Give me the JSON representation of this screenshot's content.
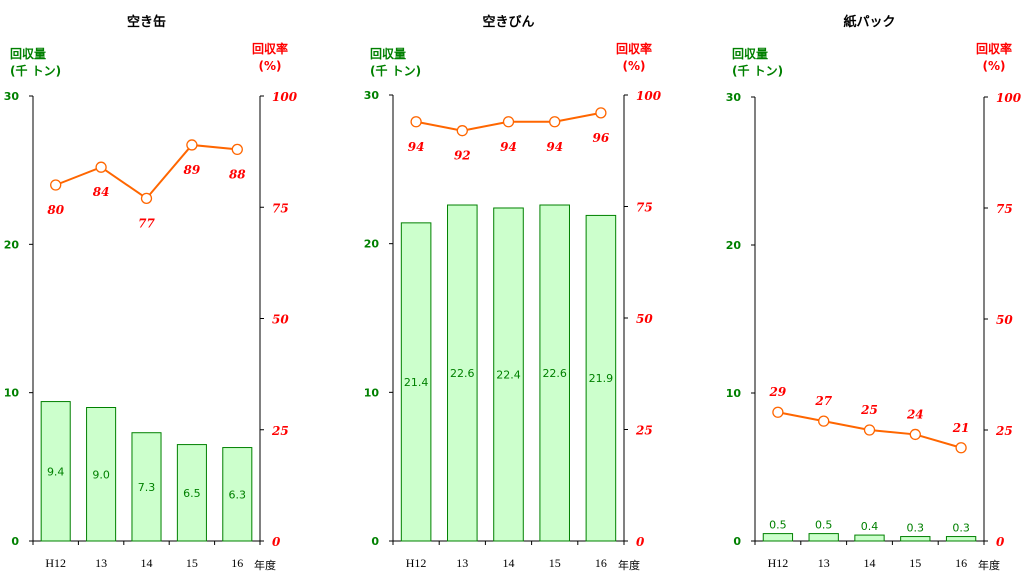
{
  "chart_data": [
    {
      "type": "bar",
      "title": "空き缶",
      "ylabel_left": [
        "回収量",
        "(千 トン)"
      ],
      "ylabel_right": [
        "回収率",
        "(%)"
      ],
      "xunit": "年度",
      "categories": [
        "H12",
        "13",
        "14",
        "15",
        "16"
      ],
      "ylim_left": [
        0,
        30
      ],
      "yticks_left": [
        "0",
        "10",
        "20",
        "30"
      ],
      "ylim_right": [
        0,
        100
      ],
      "yticks_right": [
        "0",
        "25",
        "50",
        "75",
        "100"
      ],
      "series": [
        {
          "values": [
            9.4,
            9.0,
            7.3,
            6.5,
            6.3
          ],
          "labels": [
            "9.4",
            "9.0",
            "7.3",
            "6.5",
            "6.3"
          ],
          "axis": "left",
          "kind": "bar"
        },
        {
          "values": [
            80,
            84,
            77,
            89,
            88
          ],
          "labels": [
            "80",
            "84",
            "77",
            "89",
            "88"
          ],
          "axis": "right",
          "kind": "line",
          "label_pos": [
            "below",
            "below",
            "below",
            "below",
            "below"
          ]
        }
      ],
      "colors": {
        "bar_fill": "#ccffcc",
        "bar_stroke": "#008000",
        "line": "#ff6600",
        "rate_text": "#ff0000",
        "amount_text": "#008000"
      }
    },
    {
      "type": "bar",
      "title": "空きびん",
      "ylabel_left": [
        "回収量",
        "(千 トン)"
      ],
      "ylabel_right": [
        "回収率",
        "(%)"
      ],
      "xunit": "年度",
      "categories": [
        "H12",
        "13",
        "14",
        "15",
        "16"
      ],
      "ylim_left": [
        0,
        30
      ],
      "yticks_left": [
        "0",
        "10",
        "20",
        "30"
      ],
      "ylim_right": [
        0,
        100
      ],
      "yticks_right": [
        "0",
        "25",
        "50",
        "75",
        "100"
      ],
      "series": [
        {
          "values": [
            21.4,
            22.6,
            22.4,
            22.6,
            21.9
          ],
          "labels": [
            "21.4",
            "22.6",
            "22.4",
            "22.6",
            "21.9"
          ],
          "axis": "left",
          "kind": "bar"
        },
        {
          "values": [
            94,
            92,
            94,
            94,
            96
          ],
          "labels": [
            "94",
            "92",
            "94",
            "94",
            "96"
          ],
          "axis": "right",
          "kind": "line",
          "label_pos": [
            "below",
            "below",
            "below",
            "below",
            "below"
          ]
        }
      ],
      "colors": {
        "bar_fill": "#ccffcc",
        "bar_stroke": "#008000",
        "line": "#ff6600",
        "rate_text": "#ff0000",
        "amount_text": "#008000"
      }
    },
    {
      "type": "bar",
      "title": "紙パック",
      "ylabel_left": [
        "回収量",
        "(千 トン)"
      ],
      "ylabel_right": [
        "回収率",
        "(%)"
      ],
      "xunit": "年度",
      "categories": [
        "H12",
        "13",
        "14",
        "15",
        "16"
      ],
      "ylim_left": [
        0,
        30
      ],
      "yticks_left": [
        "0",
        "10",
        "20",
        "30"
      ],
      "ylim_right": [
        0,
        100
      ],
      "yticks_right": [
        "0",
        "25",
        "50",
        "75",
        "100"
      ],
      "series": [
        {
          "values": [
            0.5,
            0.5,
            0.4,
            0.3,
            0.3
          ],
          "labels": [
            "0.5",
            "0.5",
            "0.4",
            "0.3",
            "0.3"
          ],
          "axis": "left",
          "kind": "bar"
        },
        {
          "values": [
            29,
            27,
            25,
            24,
            21
          ],
          "labels": [
            "29",
            "27",
            "25",
            "24",
            "21"
          ],
          "axis": "right",
          "kind": "line",
          "label_pos": [
            "above",
            "above",
            "above",
            "above",
            "above"
          ]
        }
      ],
      "colors": {
        "bar_fill": "#ccffcc",
        "bar_stroke": "#008000",
        "line": "#ff6600",
        "rate_text": "#ff0000",
        "amount_text": "#008000"
      }
    }
  ]
}
